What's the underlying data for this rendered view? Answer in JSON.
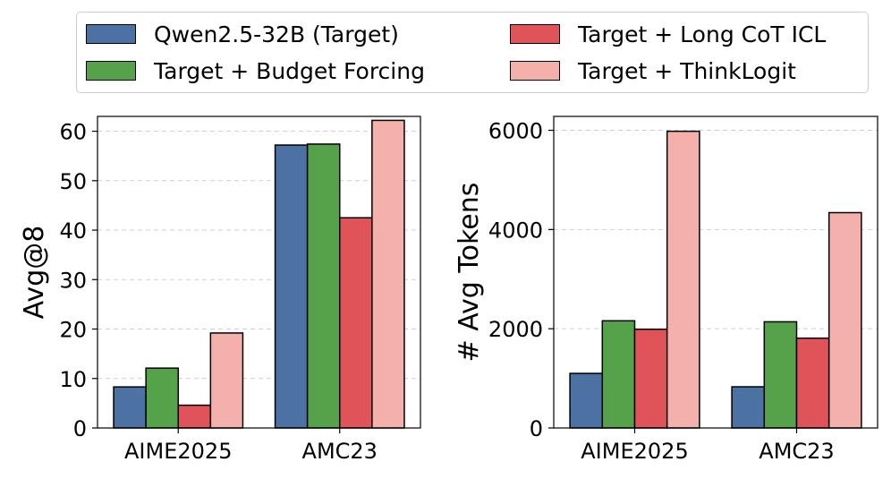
{
  "legend": {
    "items": [
      {
        "label": "Qwen2.5-32B (Target)",
        "color": "#4c72a4"
      },
      {
        "label": "Target + Budget Forcing",
        "color": "#55a24b"
      },
      {
        "label": "Target + Long CoT ICL",
        "color": "#e05459"
      },
      {
        "label": "Target + ThinkLogit",
        "color": "#f4b0aa"
      }
    ]
  },
  "chart_data": [
    {
      "type": "bar",
      "title": "",
      "xlabel": "",
      "ylabel": "Avg@8",
      "categories": [
        "AIME2025",
        "AMC23"
      ],
      "ylim": [
        0,
        63
      ],
      "yticks": [
        0,
        10,
        20,
        30,
        40,
        50,
        60
      ],
      "grid": true,
      "series": [
        {
          "name": "Qwen2.5-32B (Target)",
          "values": [
            8.3,
            57.2
          ]
        },
        {
          "name": "Target + Budget Forcing",
          "values": [
            12.1,
            57.4
          ]
        },
        {
          "name": "Target + Long CoT ICL",
          "values": [
            4.6,
            42.5
          ]
        },
        {
          "name": "Target + ThinkLogit",
          "values": [
            19.2,
            62.2
          ]
        }
      ]
    },
    {
      "type": "bar",
      "title": "",
      "xlabel": "",
      "ylabel": "# Avg Tokens",
      "categories": [
        "AIME2025",
        "AMC23"
      ],
      "ylim": [
        0,
        6280
      ],
      "yticks": [
        0,
        2000,
        4000,
        6000
      ],
      "grid": true,
      "series": [
        {
          "name": "Qwen2.5-32B (Target)",
          "values": [
            1100,
            830
          ]
        },
        {
          "name": "Target + Budget Forcing",
          "values": [
            2160,
            2140
          ]
        },
        {
          "name": "Target + Long CoT ICL",
          "values": [
            1990,
            1810
          ]
        },
        {
          "name": "Target + ThinkLogit",
          "values": [
            5980,
            4340
          ]
        }
      ]
    }
  ]
}
